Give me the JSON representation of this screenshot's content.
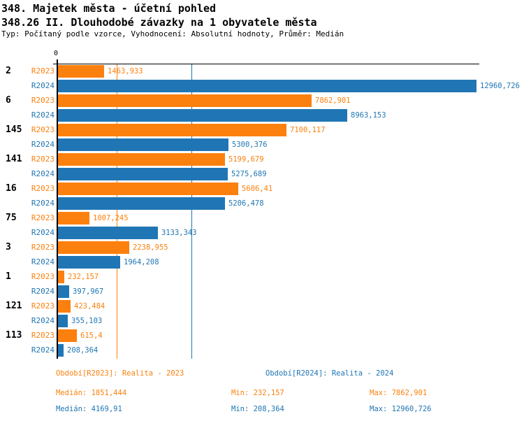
{
  "header": {
    "title_line1": "348. Majetek města - účetní pohled",
    "title_line2": "348.26 II. Dlouhodobé závazky na 1 obyvatele města",
    "subtitle": "Typ: Počítaný podle vzorce, Vyhodnocení: Absolutní hodnoty, Průměr: Medián"
  },
  "colors": {
    "r2023": "#FC800D",
    "r2024": "#2076B4",
    "axis": "#000000"
  },
  "chart_data": {
    "type": "bar",
    "orientation": "horizontal",
    "x_axis": {
      "zero_label": "0",
      "max": 12960.726,
      "gridlines": "median lines only"
    },
    "legend_position": "below-chart",
    "series": [
      {
        "name": "R2023",
        "color": "#FC800D"
      },
      {
        "name": "R2024",
        "color": "#2076B4"
      }
    ],
    "groups": [
      {
        "category": "2",
        "values": [
          1463.933,
          12960.726
        ],
        "labels": [
          "1463,933",
          "12960,726"
        ]
      },
      {
        "category": "6",
        "values": [
          7862.901,
          8963.153
        ],
        "labels": [
          "7862,901",
          "8963,153"
        ]
      },
      {
        "category": "145",
        "values": [
          7100.117,
          5300.376
        ],
        "labels": [
          "7100,117",
          "5300,376"
        ]
      },
      {
        "category": "141",
        "values": [
          5199.679,
          5275.689
        ],
        "labels": [
          "5199,679",
          "5275,689"
        ]
      },
      {
        "category": "16",
        "values": [
          5606.41,
          5206.478
        ],
        "labels": [
          "5606,41",
          "5206,478"
        ]
      },
      {
        "category": "75",
        "values": [
          1007.245,
          3133.343
        ],
        "labels": [
          "1007,245",
          "3133,343"
        ]
      },
      {
        "category": "3",
        "values": [
          2238.955,
          1964.208
        ],
        "labels": [
          "2238,955",
          "1964,208"
        ]
      },
      {
        "category": "1",
        "values": [
          232.157,
          397.967
        ],
        "labels": [
          "232,157",
          "397,967"
        ]
      },
      {
        "category": "121",
        "values": [
          423.484,
          355.103
        ],
        "labels": [
          "423,484",
          "355,103"
        ]
      },
      {
        "category": "113",
        "values": [
          615.4,
          208.364
        ],
        "labels": [
          "615,4",
          "208,364"
        ]
      }
    ],
    "median_lines": [
      {
        "series": "R2023",
        "value": 1851.444
      },
      {
        "series": "R2024",
        "value": 4169.91
      }
    ]
  },
  "footer": {
    "period_2023": "Období[R2023]: Realita - 2023",
    "period_2024": "Období[R2024]: Realita - 2024",
    "stats_2023": {
      "median": "Medián: 1851,444",
      "min": "Min: 232,157",
      "max": "Max: 7862,901"
    },
    "stats_2024": {
      "median": "Medián: 4169,91",
      "min": "Min: 208,364",
      "max": "Max: 12960,726"
    }
  }
}
